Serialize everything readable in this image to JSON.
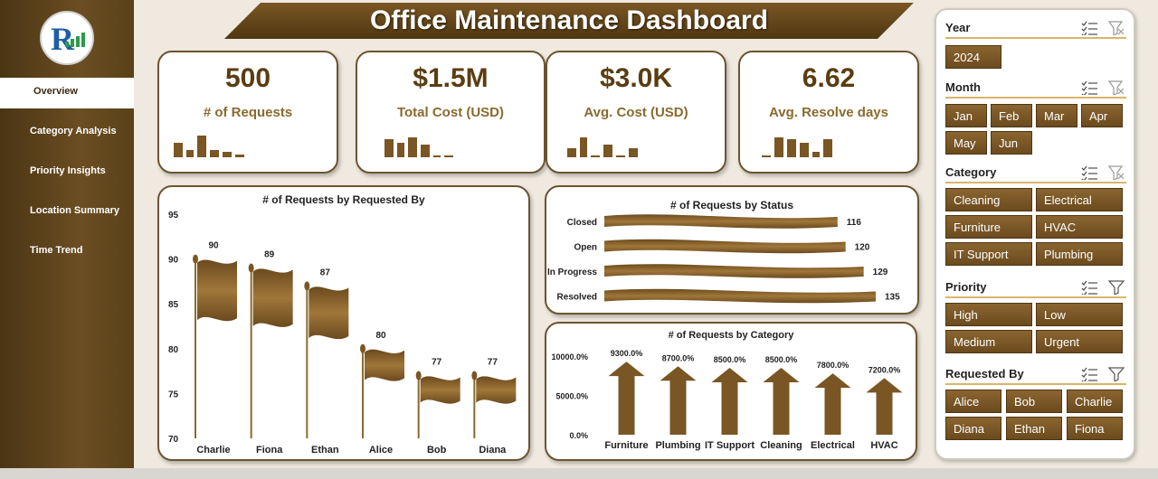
{
  "app": {
    "title": "Office Maintenance Dashboard"
  },
  "nav": {
    "items": [
      {
        "label": "Overview",
        "active": true
      },
      {
        "label": "Category Analysis"
      },
      {
        "label": "Priority Insights"
      },
      {
        "label": "Location Summary"
      },
      {
        "label": "Time Trend"
      }
    ]
  },
  "kpis": [
    {
      "value": "500",
      "label": "# of Requests"
    },
    {
      "value": "$1.5M",
      "label": "Total Cost (USD)"
    },
    {
      "value": "$3.0K",
      "label": "Avg. Cost (USD)"
    },
    {
      "value": "6.62",
      "label": "Avg. Resolve days"
    }
  ],
  "colors": {
    "brown_dark": "#5b3d12",
    "brown": "#7a5624",
    "gold": "#d9b56c"
  },
  "chart_data": [
    {
      "type": "bar",
      "title": "# of Requests by Requested By",
      "categories": [
        "Charlie",
        "Fiona",
        "Ethan",
        "Alice",
        "Bob",
        "Diana"
      ],
      "values": [
        90,
        89,
        87,
        80,
        77,
        77
      ],
      "value_labels": [
        "90",
        "89",
        "87",
        "80",
        "77",
        "77"
      ],
      "ylim": [
        70,
        95
      ],
      "yticks": [
        "95",
        "90",
        "85",
        "80",
        "75",
        "70"
      ]
    },
    {
      "type": "bar",
      "orientation": "horizontal",
      "title": "# of Requests by Status",
      "categories": [
        "Closed",
        "Open",
        "In Progress",
        "Resolved"
      ],
      "values": [
        116,
        120,
        129,
        135
      ],
      "value_labels": [
        "116",
        "120",
        "129",
        "135"
      ]
    },
    {
      "type": "bar",
      "title": "# of Requests by Category",
      "categories": [
        "Furniture",
        "Plumbing",
        "IT Support",
        "Cleaning",
        "Electrical",
        "HVAC"
      ],
      "values": [
        9300,
        8700,
        8500,
        8500,
        7800,
        7200
      ],
      "value_labels": [
        "9300.0%",
        "8700.0%",
        "8500.0%",
        "8500.0%",
        "7800.0%",
        "7200.0%"
      ],
      "ylim": [
        0,
        10000
      ],
      "yticks": [
        "10000.0%",
        "5000.0%",
        "0.0%"
      ]
    }
  ],
  "slicers": [
    {
      "name": "Year",
      "items": [
        "2024"
      ]
    },
    {
      "name": "Month",
      "items": [
        "Jan",
        "Feb",
        "Mar",
        "Apr",
        "May",
        "Jun"
      ]
    },
    {
      "name": "Category",
      "items": [
        "Cleaning",
        "Electrical",
        "Furniture",
        "HVAC",
        "IT Support",
        "Plumbing"
      ]
    },
    {
      "name": "Priority",
      "items": [
        "High",
        "Low",
        "Medium",
        "Urgent"
      ]
    },
    {
      "name": "Requested By",
      "items": [
        "Alice",
        "Bob",
        "Charlie",
        "Diana",
        "Ethan",
        "Fiona"
      ]
    }
  ]
}
